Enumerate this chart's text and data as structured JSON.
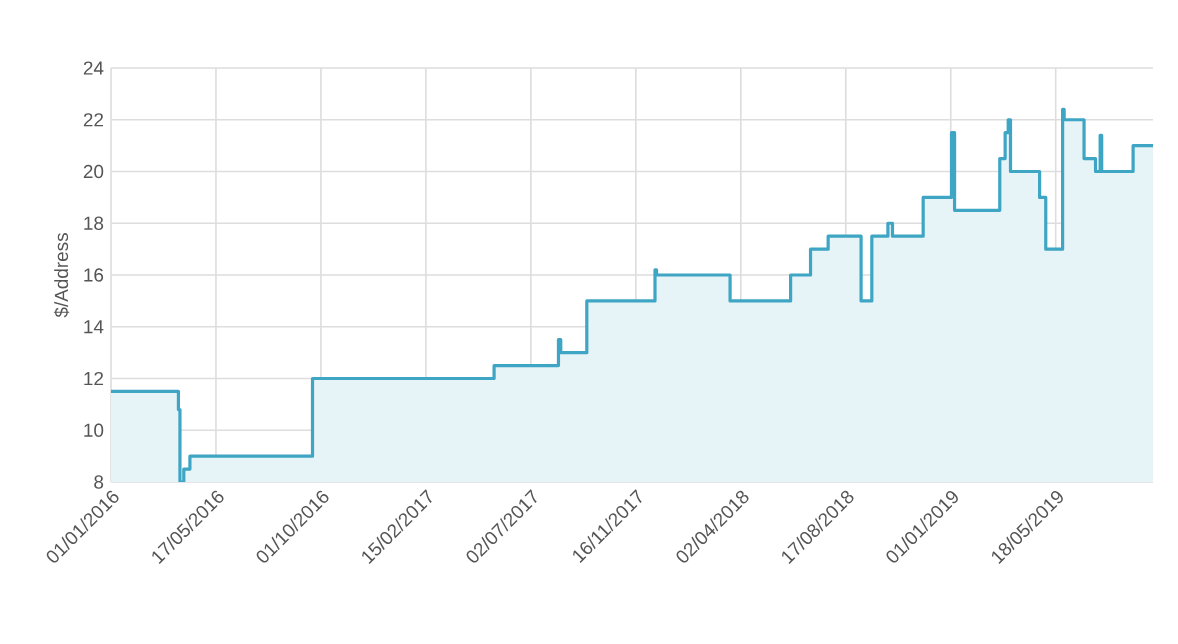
{
  "chart_data": {
    "type": "step",
    "ylabel": "$/Address",
    "x": [
      "2016-01-01",
      "2016-03-29",
      "2016-03-31",
      "2016-04-05",
      "2016-04-13",
      "2016-09-20",
      "2017-05-15",
      "2017-08-07",
      "2017-08-10",
      "2017-09-13",
      "2017-12-11",
      "2017-12-13",
      "2018-03-19",
      "2018-06-06",
      "2018-07-02",
      "2018-07-25",
      "2018-09-06",
      "2018-09-20",
      "2018-10-11",
      "2018-10-17",
      "2018-11-26",
      "2019-01-02",
      "2019-01-06",
      "2019-03-06",
      "2019-03-13",
      "2019-03-17",
      "2019-03-20",
      "2019-04-27",
      "2019-05-05",
      "2019-05-27",
      "2019-05-29",
      "2019-06-24",
      "2019-07-09",
      "2019-07-15",
      "2019-07-17",
      "2019-08-27",
      "2019-09-22"
    ],
    "series": [
      {
        "color": "#3ea6c4",
        "values": [
          11.5,
          10.8,
          8,
          8.5,
          9,
          12,
          12.5,
          13.5,
          13,
          15,
          16.2,
          16,
          15,
          16,
          17,
          17.5,
          15,
          17.5,
          18,
          17.5,
          19,
          21.5,
          18.5,
          20.5,
          21.5,
          22,
          20,
          19,
          17,
          22.4,
          22,
          20.5,
          20,
          21.4,
          20,
          21,
          21
        ]
      }
    ],
    "xlim": [
      "2016-01-01",
      "2019-09-22"
    ],
    "xticks": [
      {
        "value": "2016-01-01",
        "label": "01/01/2016"
      },
      {
        "value": "2016-05-17",
        "label": "17/05/2016"
      },
      {
        "value": "2016-10-01",
        "label": "01/10/2016"
      },
      {
        "value": "2017-02-15",
        "label": "15/02/2017"
      },
      {
        "value": "2017-07-02",
        "label": "02/07/2017"
      },
      {
        "value": "2017-11-16",
        "label": "16/11/2017"
      },
      {
        "value": "2018-04-02",
        "label": "02/04/2018"
      },
      {
        "value": "2018-08-17",
        "label": "17/08/2018"
      },
      {
        "value": "2019-01-01",
        "label": "01/01/2019"
      },
      {
        "value": "2019-05-18",
        "label": "18/05/2019"
      }
    ],
    "ylim": [
      8,
      24
    ],
    "yticks": [
      8,
      10,
      12,
      14,
      16,
      18,
      20,
      22,
      24
    ],
    "grid": true
  }
}
